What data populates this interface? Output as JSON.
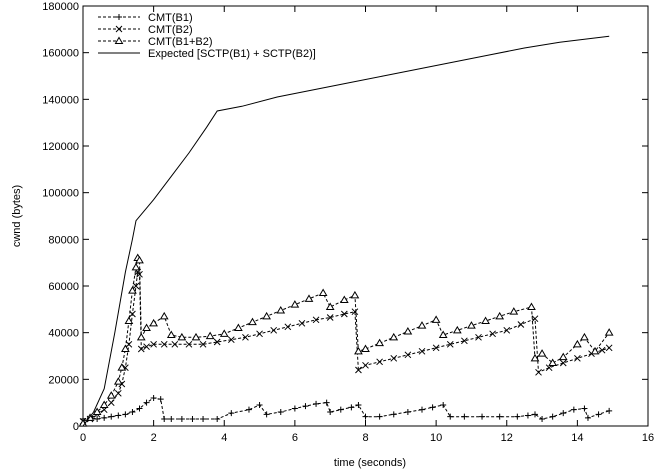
{
  "chart_data": {
    "type": "line",
    "xlabel": "time (seconds)",
    "ylabel": "cwnd (bytes)",
    "xlim": [
      0,
      16
    ],
    "ylim": [
      0,
      180000
    ],
    "xticks": [
      0,
      2,
      4,
      6,
      8,
      10,
      12,
      14,
      16
    ],
    "yticks": [
      0,
      20000,
      40000,
      60000,
      80000,
      100000,
      120000,
      140000,
      160000,
      180000
    ],
    "grid": false,
    "legend_position": "top-left",
    "series": [
      {
        "name": "CMT(B1)",
        "line_style": "dashed",
        "marker": "plus",
        "color": "#000000",
        "points": [
          [
            0.0,
            3000
          ],
          [
            0.2,
            3500
          ],
          [
            0.4,
            3000
          ],
          [
            0.6,
            3500
          ],
          [
            0.8,
            4000
          ],
          [
            1.0,
            4500
          ],
          [
            1.2,
            5000
          ],
          [
            1.4,
            6000
          ],
          [
            1.6,
            7500
          ],
          [
            1.8,
            10000
          ],
          [
            2.0,
            12000
          ],
          [
            2.2,
            11500
          ],
          [
            2.3,
            3000
          ],
          [
            2.5,
            3000
          ],
          [
            2.8,
            3000
          ],
          [
            3.1,
            3000
          ],
          [
            3.4,
            3000
          ],
          [
            3.8,
            3000
          ],
          [
            4.2,
            5500
          ],
          [
            4.7,
            7000
          ],
          [
            5.0,
            9000
          ],
          [
            5.2,
            5000
          ],
          [
            5.6,
            6000
          ],
          [
            6.0,
            7500
          ],
          [
            6.3,
            8500
          ],
          [
            6.6,
            9500
          ],
          [
            6.9,
            10000
          ],
          [
            7.0,
            6000
          ],
          [
            7.3,
            7000
          ],
          [
            7.6,
            8000
          ],
          [
            7.8,
            9000
          ],
          [
            8.0,
            4000
          ],
          [
            8.4,
            4000
          ],
          [
            8.8,
            5000
          ],
          [
            9.2,
            6000
          ],
          [
            9.6,
            7000
          ],
          [
            9.9,
            8000
          ],
          [
            10.2,
            9000
          ],
          [
            10.4,
            4000
          ],
          [
            10.8,
            4000
          ],
          [
            11.3,
            4000
          ],
          [
            11.8,
            4000
          ],
          [
            12.3,
            4000
          ],
          [
            12.6,
            4500
          ],
          [
            12.8,
            5000
          ],
          [
            13.0,
            3000
          ],
          [
            13.3,
            4000
          ],
          [
            13.6,
            5500
          ],
          [
            13.9,
            7000
          ],
          [
            14.2,
            7500
          ],
          [
            14.3,
            3500
          ],
          [
            14.6,
            5000
          ],
          [
            14.9,
            6500
          ]
        ]
      },
      {
        "name": "CMT(B2)",
        "line_style": "dashed",
        "marker": "cross",
        "color": "#000000",
        "points": [
          [
            0.0,
            2000
          ],
          [
            0.2,
            3000
          ],
          [
            0.4,
            5000
          ],
          [
            0.6,
            7000
          ],
          [
            0.8,
            10000
          ],
          [
            1.0,
            14000
          ],
          [
            1.1,
            18000
          ],
          [
            1.2,
            25000
          ],
          [
            1.3,
            35000
          ],
          [
            1.4,
            48000
          ],
          [
            1.5,
            60000
          ],
          [
            1.55,
            66000
          ],
          [
            1.6,
            65000
          ],
          [
            1.65,
            33000
          ],
          [
            1.8,
            34000
          ],
          [
            2.0,
            35000
          ],
          [
            2.3,
            35000
          ],
          [
            2.6,
            35000
          ],
          [
            3.0,
            35000
          ],
          [
            3.4,
            35000
          ],
          [
            3.8,
            36000
          ],
          [
            4.2,
            37000
          ],
          [
            4.6,
            38000
          ],
          [
            5.0,
            39500
          ],
          [
            5.4,
            41000
          ],
          [
            5.8,
            42500
          ],
          [
            6.2,
            44000
          ],
          [
            6.6,
            45500
          ],
          [
            7.0,
            46500
          ],
          [
            7.4,
            48000
          ],
          [
            7.7,
            49000
          ],
          [
            7.8,
            24000
          ],
          [
            8.0,
            26000
          ],
          [
            8.4,
            27500
          ],
          [
            8.8,
            29000
          ],
          [
            9.2,
            30500
          ],
          [
            9.6,
            32000
          ],
          [
            10.0,
            33500
          ],
          [
            10.4,
            35000
          ],
          [
            10.8,
            36500
          ],
          [
            11.2,
            38000
          ],
          [
            11.6,
            39500
          ],
          [
            12.0,
            41000
          ],
          [
            12.4,
            43500
          ],
          [
            12.8,
            46000
          ],
          [
            12.9,
            23000
          ],
          [
            13.2,
            25000
          ],
          [
            13.6,
            27000
          ],
          [
            14.0,
            29000
          ],
          [
            14.4,
            31000
          ],
          [
            14.7,
            32500
          ],
          [
            14.9,
            33500
          ]
        ]
      },
      {
        "name": "CMT(B1+B2)",
        "line_style": "dashed",
        "marker": "triangle",
        "color": "#000000",
        "points": [
          [
            0.0,
            1000
          ],
          [
            0.2,
            3500
          ],
          [
            0.4,
            6000
          ],
          [
            0.6,
            9000
          ],
          [
            0.8,
            13000
          ],
          [
            1.0,
            19000
          ],
          [
            1.1,
            25000
          ],
          [
            1.2,
            33000
          ],
          [
            1.3,
            45000
          ],
          [
            1.4,
            58000
          ],
          [
            1.5,
            68000
          ],
          [
            1.55,
            72000
          ],
          [
            1.6,
            71000
          ],
          [
            1.65,
            38000
          ],
          [
            1.8,
            42000
          ],
          [
            2.0,
            44000
          ],
          [
            2.3,
            47000
          ],
          [
            2.5,
            39000
          ],
          [
            2.8,
            38000
          ],
          [
            3.2,
            38000
          ],
          [
            3.6,
            38500
          ],
          [
            4.0,
            39500
          ],
          [
            4.4,
            42000
          ],
          [
            4.8,
            44500
          ],
          [
            5.2,
            47000
          ],
          [
            5.6,
            49500
          ],
          [
            6.0,
            52000
          ],
          [
            6.4,
            54500
          ],
          [
            6.8,
            57000
          ],
          [
            7.0,
            51000
          ],
          [
            7.4,
            54000
          ],
          [
            7.7,
            56000
          ],
          [
            7.8,
            32000
          ],
          [
            8.0,
            33000
          ],
          [
            8.4,
            35500
          ],
          [
            8.8,
            38000
          ],
          [
            9.2,
            40500
          ],
          [
            9.6,
            43000
          ],
          [
            10.0,
            45500
          ],
          [
            10.2,
            39000
          ],
          [
            10.6,
            41000
          ],
          [
            11.0,
            43000
          ],
          [
            11.4,
            45000
          ],
          [
            11.8,
            47000
          ],
          [
            12.2,
            49000
          ],
          [
            12.7,
            51000
          ],
          [
            12.8,
            29000
          ],
          [
            13.0,
            31000
          ],
          [
            13.3,
            27000
          ],
          [
            13.6,
            29500
          ],
          [
            14.0,
            35000
          ],
          [
            14.2,
            38000
          ],
          [
            14.5,
            32000
          ],
          [
            14.9,
            40000
          ]
        ]
      },
      {
        "name": "Expected [SCTP(B1) + SCTP(B2)]",
        "line_style": "solid",
        "marker": "none",
        "color": "#000000",
        "points": [
          [
            0.0,
            0
          ],
          [
            0.3,
            6000
          ],
          [
            0.6,
            16000
          ],
          [
            0.9,
            40000
          ],
          [
            1.2,
            66000
          ],
          [
            1.4,
            80000
          ],
          [
            1.5,
            88000
          ],
          [
            2.0,
            97000
          ],
          [
            2.5,
            107000
          ],
          [
            3.0,
            117000
          ],
          [
            3.5,
            128000
          ],
          [
            3.8,
            135000
          ],
          [
            4.5,
            137000
          ],
          [
            5.5,
            141000
          ],
          [
            6.5,
            144000
          ],
          [
            7.5,
            147000
          ],
          [
            8.5,
            150000
          ],
          [
            9.5,
            153000
          ],
          [
            10.5,
            156000
          ],
          [
            11.5,
            159000
          ],
          [
            12.5,
            162000
          ],
          [
            13.5,
            164500
          ],
          [
            14.9,
            167000
          ]
        ]
      }
    ]
  }
}
